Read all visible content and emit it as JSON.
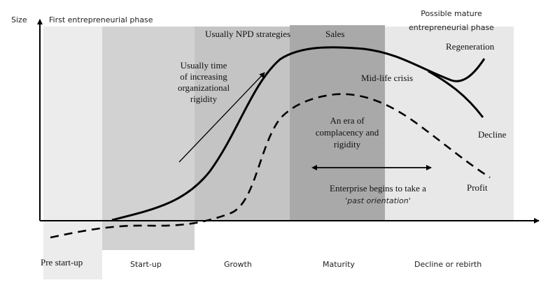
{
  "axes": {
    "y_label": "Size"
  },
  "top_labels": {
    "first_phase": "First entrepreneurial phase",
    "possible_mature_line1": "Possible mature",
    "possible_mature_line2": "entrepreneurial phase"
  },
  "band_labels": {
    "npd": "Usually NPD strategies",
    "sales": "Sales"
  },
  "stage_labels": {
    "pre_startup": "Pre start-up",
    "startup": "Start-up",
    "growth": "Growth",
    "maturity": "Maturity",
    "decline": "Decline or rebirth"
  },
  "annotations": {
    "rigidity_line1": "Usually time",
    "rigidity_line2": "of increasing",
    "rigidity_line3": "organizational",
    "rigidity_line4": "rigidity",
    "midlife": "Mid-life crisis",
    "regeneration": "Regeneration",
    "decline": "Decline",
    "profit": "Profit",
    "complacency_line1": "An era of",
    "complacency_line2": "complacency and",
    "complacency_line3": "rigidity",
    "past_line1": "Enterprise begins to take a",
    "past_line2": "'past orientation'"
  },
  "colors": {
    "band_light": "#e4e4e4",
    "band_startup": "#d2d2d2",
    "band_growth": "#c2c2c2",
    "band_maturity": "#a9a9a9",
    "line": "#000000"
  }
}
